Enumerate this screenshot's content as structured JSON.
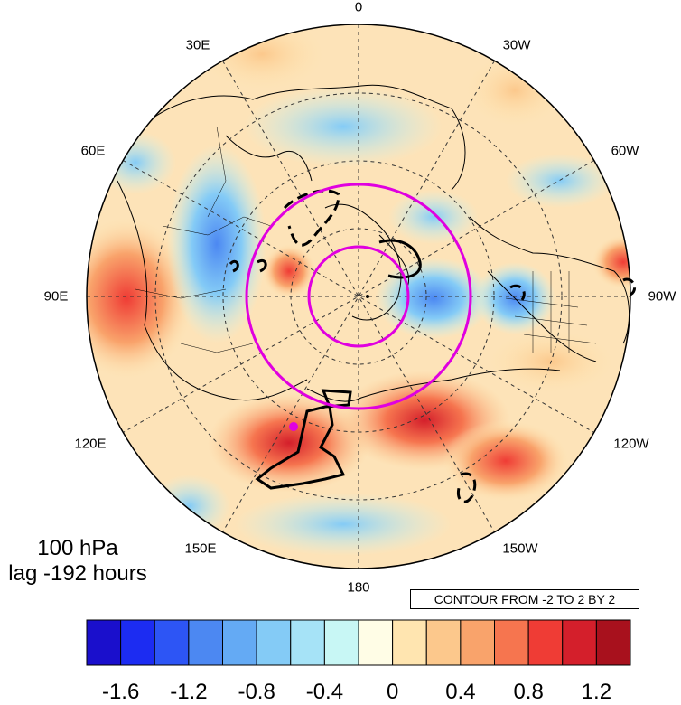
{
  "level_label": "100 hPa",
  "lag_label": "lag -192 hours",
  "contour_info": "CONTOUR FROM -2 TO 2 BY 2",
  "longitude_labels": {
    "lon_0": "0",
    "lon_30e": "30E",
    "lon_30w": "30W",
    "lon_60e": "60E",
    "lon_60w": "60W",
    "lon_90e": "90E",
    "lon_90w": "90W",
    "lon_120e": "120E",
    "lon_120w": "120W",
    "lon_150e": "150E",
    "lon_150w": "150W",
    "lon_180": "180"
  },
  "colorbar": {
    "colors": [
      "#1a0fcc",
      "#1c2cf2",
      "#2d55f5",
      "#4c88f2",
      "#64aaf4",
      "#84cbf6",
      "#a6e3f7",
      "#c8f7f5",
      "#fffde6",
      "#ffe5b0",
      "#fcc88c",
      "#f9a36b",
      "#f6754f",
      "#ef3c35",
      "#d41f2b",
      "#a8111d"
    ],
    "tick_labels": [
      "-1.6",
      "-1.2",
      "-0.8",
      "-0.4",
      "0",
      "0.4",
      "0.8",
      "1.2"
    ]
  },
  "contour_colors": {
    "circle_color": "#e000e0",
    "contour_color": "#000000"
  }
}
